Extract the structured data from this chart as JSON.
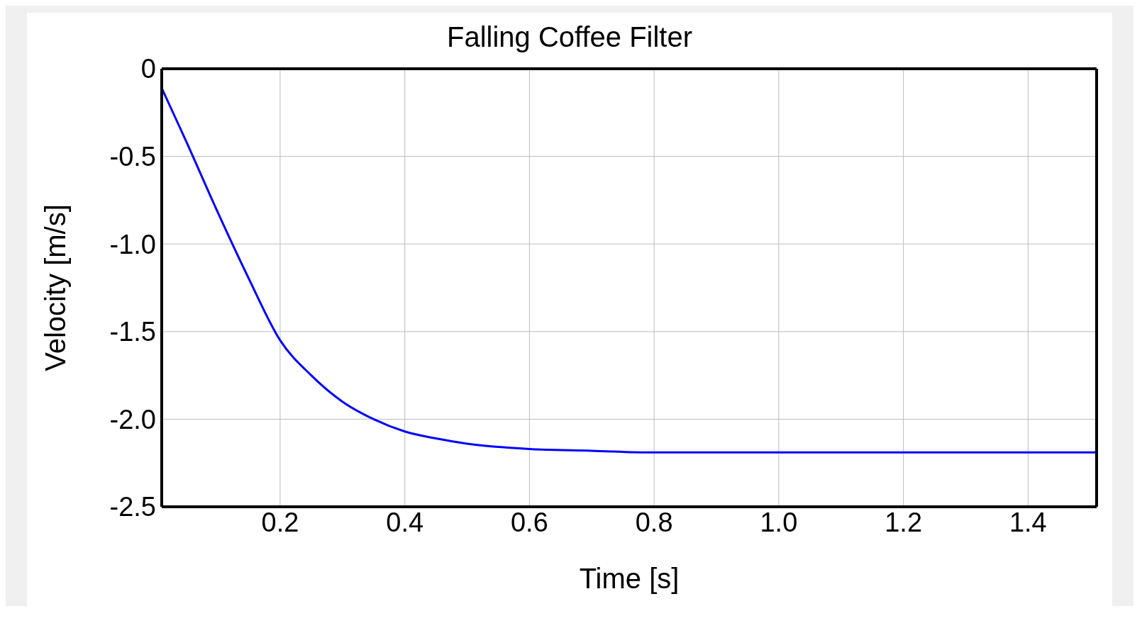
{
  "chart_data": {
    "type": "line",
    "title": "Falling Coffee Filter",
    "xlabel": "Time [s]",
    "ylabel": "Velocity [m/s]",
    "x": [
      0.01,
      0.05,
      0.1,
      0.15,
      0.2,
      0.25,
      0.3,
      0.35,
      0.4,
      0.45,
      0.5,
      0.6,
      0.7,
      0.8,
      1.0,
      1.2,
      1.51
    ],
    "series": [
      {
        "color": "#0000ff",
        "values": [
          -0.11,
          -0.42,
          -0.82,
          -1.2,
          -1.55,
          -1.75,
          -1.9,
          -2.0,
          -2.07,
          -2.11,
          -2.14,
          -2.17,
          -2.18,
          -2.19,
          -2.19,
          -2.19,
          -2.19
        ]
      }
    ],
    "xlim": [
      0.01,
      1.51
    ],
    "xticks": [
      0.2,
      0.4,
      0.6,
      0.8,
      {
        "value": 1.0,
        "label": "1.0"
      },
      1.2,
      1.4
    ],
    "ylim": [
      -2.5,
      0
    ],
    "yticks": [
      -2.5,
      {
        "value": -2.0,
        "label": "-2.0"
      },
      -1.5,
      {
        "value": -1.0,
        "label": "-1.0"
      },
      -0.5,
      0
    ],
    "grid": true,
    "marker": "none",
    "line_style": "solid"
  }
}
